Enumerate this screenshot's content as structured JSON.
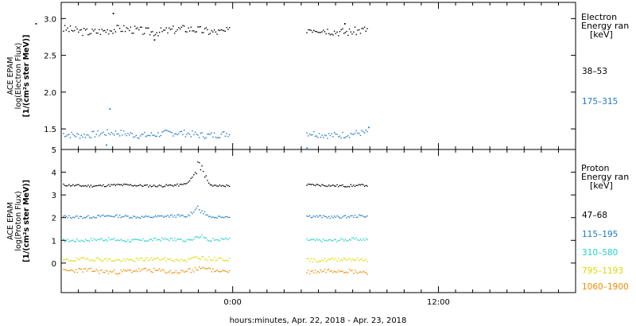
{
  "chart_data": [
    {
      "type": "scatter",
      "panel": "electron",
      "ylabel_lines": [
        "ACE EPAM",
        "log(Electron Flux)",
        "[1/(cm²s ster MeV)]"
      ],
      "legend_title": [
        "Electron",
        "Energy ran",
        "[keV]"
      ],
      "ylim": [
        1.22,
        3.22
      ],
      "yticks": [
        1.5,
        2.0,
        2.5,
        3.0
      ],
      "ytick_labels": [
        "1.5",
        "2.0",
        "2.5",
        "3.0"
      ],
      "grid": false,
      "series": [
        {
          "name": "38–53",
          "color": "#000000",
          "base": 2.84,
          "amp": 0.055,
          "seed": 3,
          "outliers": [
            [
              -7.0,
              3.07
            ],
            [
              -11.5,
              2.93
            ],
            [
              -4.6,
              2.71
            ],
            [
              6.5,
              2.93
            ]
          ]
        },
        {
          "name": "175–315",
          "color": "#1e78c8",
          "base": 1.43,
          "amp": 0.045,
          "seed": 7,
          "outliers": [
            [
              -7.2,
              1.77
            ],
            [
              -7.4,
              1.28
            ],
            [
              4.3,
              1.24
            ],
            [
              7.9,
              1.52
            ]
          ]
        }
      ]
    },
    {
      "type": "scatter",
      "panel": "proton",
      "ylabel_lines": [
        "ACE EPAM",
        "log(Proton Flux)",
        "[1/(cm²s ster MeV)]"
      ],
      "legend_title": [
        "Proton",
        "Energy ran",
        "[keV]"
      ],
      "ylim": [
        -1.3,
        5.0
      ],
      "yticks": [
        0,
        1,
        2,
        3,
        4,
        5
      ],
      "ytick_labels": [
        "0",
        "1",
        "2",
        "3",
        "4",
        "5"
      ],
      "grid": false,
      "series": [
        {
          "name": "47–68",
          "color": "#000000",
          "base": 3.42,
          "amp": 0.05,
          "seed": 11,
          "bump": 0.8
        },
        {
          "name": "115–195",
          "color": "#1e78c8",
          "base": 2.05,
          "amp": 0.06,
          "seed": 13,
          "bump": 0.35
        },
        {
          "name": "310–580",
          "color": "#22d0c8",
          "base": 1.02,
          "amp": 0.07,
          "seed": 17,
          "bump": 0.2
        },
        {
          "name": "795–1193",
          "color": "#d6dc00",
          "base": 0.15,
          "amp": 0.08,
          "seed": 19,
          "bump": 0.12
        },
        {
          "name": "1060–1900",
          "color": "#f08a00",
          "base": -0.35,
          "amp": 0.1,
          "seed": 23,
          "bump": 0.1
        }
      ]
    }
  ],
  "x_axis": {
    "title": "hours:minutes, Apr. 22, 2018 - Apr. 23, 2018",
    "range_hours": [
      -10,
      20
    ],
    "ticks": [
      0,
      12
    ],
    "tick_labels": [
      "0:00",
      "12:00"
    ],
    "data_segments": [
      [
        -9.9,
        -0.2
      ],
      [
        4.3,
        7.9
      ]
    ]
  }
}
